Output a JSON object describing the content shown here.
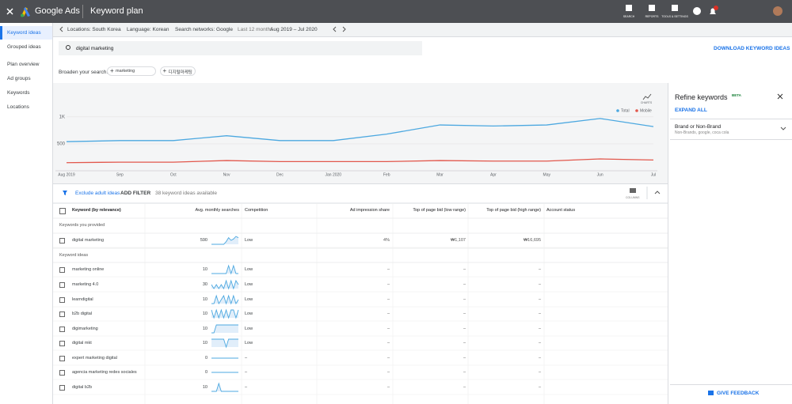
{
  "header": {
    "app": "Google Ads",
    "page": "Keyword plan",
    "tools": [
      "SEARCH",
      "REPORTS",
      "TOOLS & SETTINGS"
    ]
  },
  "sidebar": [
    "Keyword ideas",
    "Grouped ideas",
    "Plan overview",
    "Ad groups",
    "Keywords",
    "Locations"
  ],
  "filters": {
    "location": "Locations: South Korea",
    "language": "Language: Korean",
    "networks": "Search networks: Google",
    "period": "Last 12 months",
    "range": "Aug 2019 – Jul 2020"
  },
  "search": {
    "query": "digital marketing",
    "download": "DOWNLOAD KEYWORD IDEAS",
    "broaden": "Broaden your search:",
    "chips": [
      "marketing",
      "디지털마케팅"
    ]
  },
  "chart_data": {
    "type": "line",
    "charts_label": "CHARTS",
    "categories": [
      "Aug 2019",
      "Sep",
      "Oct",
      "Nov",
      "Dec",
      "Jan 2020",
      "Feb",
      "Mar",
      "Apr",
      "May",
      "Jun",
      "Jul"
    ],
    "ylim": [
      0,
      1100
    ],
    "yticks": [
      500,
      {
        "value": 1000,
        "label": "1K"
      }
    ],
    "grid": true,
    "series": [
      {
        "name": "Total",
        "color": "#4ca8e0",
        "values": [
          540,
          560,
          560,
          650,
          560,
          560,
          680,
          850,
          830,
          850,
          970,
          820
        ]
      },
      {
        "name": "Mobile",
        "color": "#e2574c",
        "values": [
          150,
          160,
          160,
          190,
          170,
          170,
          170,
          190,
          180,
          180,
          220,
          200
        ]
      }
    ]
  },
  "table": {
    "toolbar": {
      "adult": "Exclude adult ideas",
      "filter": "ADD FILTER",
      "count": "38 keyword ideas available",
      "columns": "COLUMNS"
    },
    "headers": [
      "Keyword (by relevance)",
      "Avg. monthly searches",
      "Competition",
      "Ad impression share",
      "Top of page bid (low range)",
      "Top of page bid (high range)",
      "Account status"
    ],
    "sections": [
      "Keywords you provided",
      "Keyword ideas"
    ],
    "rows": [
      {
        "section": 0,
        "cells": [
          "digital marketing",
          "590",
          "Low",
          "4%",
          "₩1,107",
          "₩16,695"
        ],
        "trend": [
          3,
          3,
          3,
          3,
          3,
          3,
          5,
          8,
          6,
          7,
          9,
          8
        ]
      },
      {
        "section": 1,
        "cells": [
          "marketing online",
          "10",
          "Low",
          "–",
          "–",
          "–"
        ],
        "trend": [
          1,
          1,
          1,
          1,
          1,
          1,
          1,
          9,
          1,
          9,
          1,
          1
        ]
      },
      {
        "section": 1,
        "cells": [
          "marketing 4.0",
          "30",
          "Low",
          "–",
          "–",
          "–"
        ],
        "trend": [
          5,
          1,
          5,
          1,
          5,
          1,
          9,
          1,
          9,
          1,
          9,
          5
        ]
      },
      {
        "section": 1,
        "cells": [
          "learndigital",
          "10",
          "Low",
          "–",
          "–",
          "–"
        ],
        "trend": [
          1,
          1,
          9,
          1,
          5,
          9,
          1,
          9,
          1,
          9,
          1,
          5
        ]
      },
      {
        "section": 1,
        "cells": [
          "b2b digital",
          "10",
          "Low",
          "–",
          "–",
          "–"
        ],
        "trend": [
          9,
          1,
          9,
          1,
          9,
          1,
          9,
          1,
          9,
          9,
          1,
          9
        ]
      },
      {
        "section": 1,
        "cells": [
          "digimarketing",
          "10",
          "Low",
          "–",
          "–",
          "–"
        ],
        "trend": [
          1,
          1,
          9,
          9,
          9,
          9,
          9,
          9,
          9,
          9,
          9,
          9
        ]
      },
      {
        "section": 1,
        "cells": [
          "digital mkt",
          "10",
          "Low",
          "–",
          "–",
          "–"
        ],
        "trend": [
          9,
          9,
          9,
          9,
          9,
          9,
          1,
          9,
          9,
          9,
          9,
          9
        ]
      },
      {
        "section": 1,
        "cells": [
          "expert marketing digital",
          "0",
          "–",
          "–",
          "–",
          "–"
        ],
        "trend": [
          5,
          5,
          5,
          5,
          5,
          5,
          5,
          5,
          5,
          5,
          5,
          5
        ]
      },
      {
        "section": 1,
        "cells": [
          "agencia marketing redes sociales",
          "0",
          "–",
          "–",
          "–",
          "–"
        ],
        "trend": [
          5,
          5,
          5,
          5,
          5,
          5,
          5,
          5,
          5,
          5,
          5,
          5
        ]
      },
      {
        "section": 1,
        "cells": [
          "digital b2b",
          "10",
          "–",
          "–",
          "–",
          "–"
        ],
        "trend": [
          1,
          1,
          1,
          9,
          1,
          1,
          1,
          1,
          1,
          1,
          1,
          1
        ]
      }
    ]
  },
  "refine": {
    "title": "Refine keywords",
    "badge": "BETA",
    "expand": "EXPAND ALL",
    "group": "Brand or Non-Brand",
    "group_sub": "Non-Brands, google, coca cola",
    "feedback": "GIVE FEEDBACK"
  }
}
